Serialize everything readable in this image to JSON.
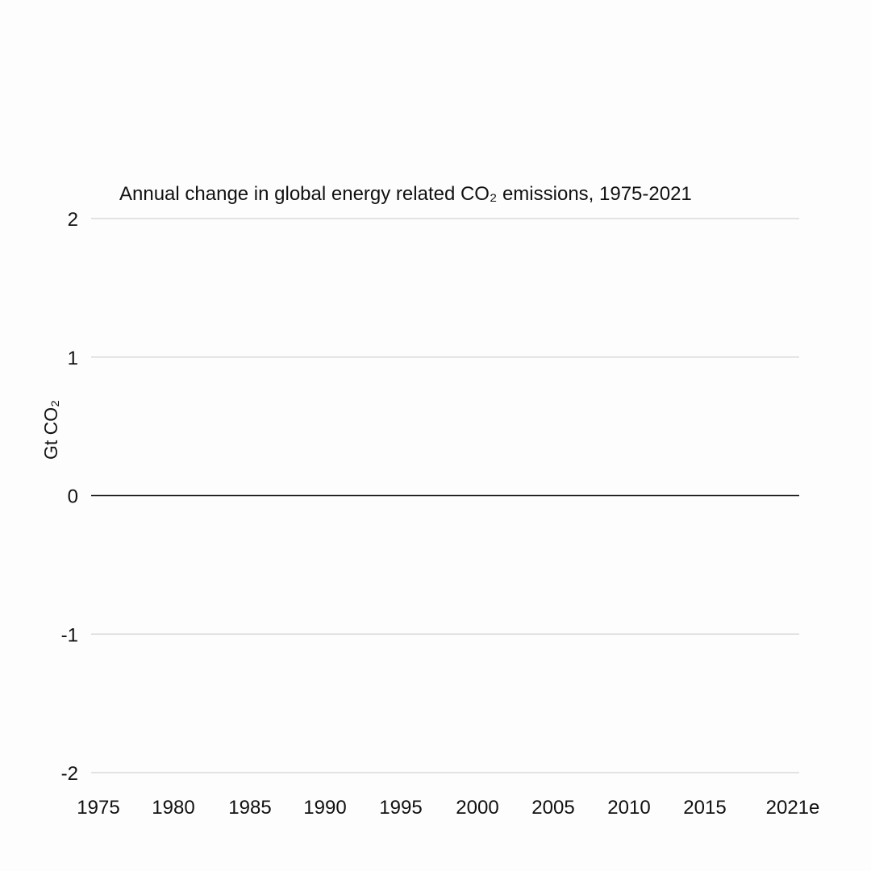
{
  "chart_data": {
    "type": "bar",
    "title": "Annual change in global energy related CO₂ emissions, 1975-2021",
    "xlabel": "",
    "ylabel": "Gt CO₂",
    "ylim": [
      -2,
      2
    ],
    "y_ticks": [
      {
        "value": 2,
        "label": "2"
      },
      {
        "value": 1,
        "label": "1"
      },
      {
        "value": 0,
        "label": "0"
      },
      {
        "value": -1,
        "label": "-1"
      },
      {
        "value": -2,
        "label": "-2"
      }
    ],
    "x_tick_labels": [
      "1975",
      "1980",
      "1985",
      "1990",
      "1995",
      "2000",
      "2005",
      "2010",
      "2015",
      "2021e"
    ],
    "categories": [],
    "values": [],
    "grid": true,
    "legend": "none",
    "colors": {
      "gridline": "#d9d9d9",
      "zero_line": "#111111",
      "text": "#111111",
      "background": "#fdfdfd"
    }
  }
}
